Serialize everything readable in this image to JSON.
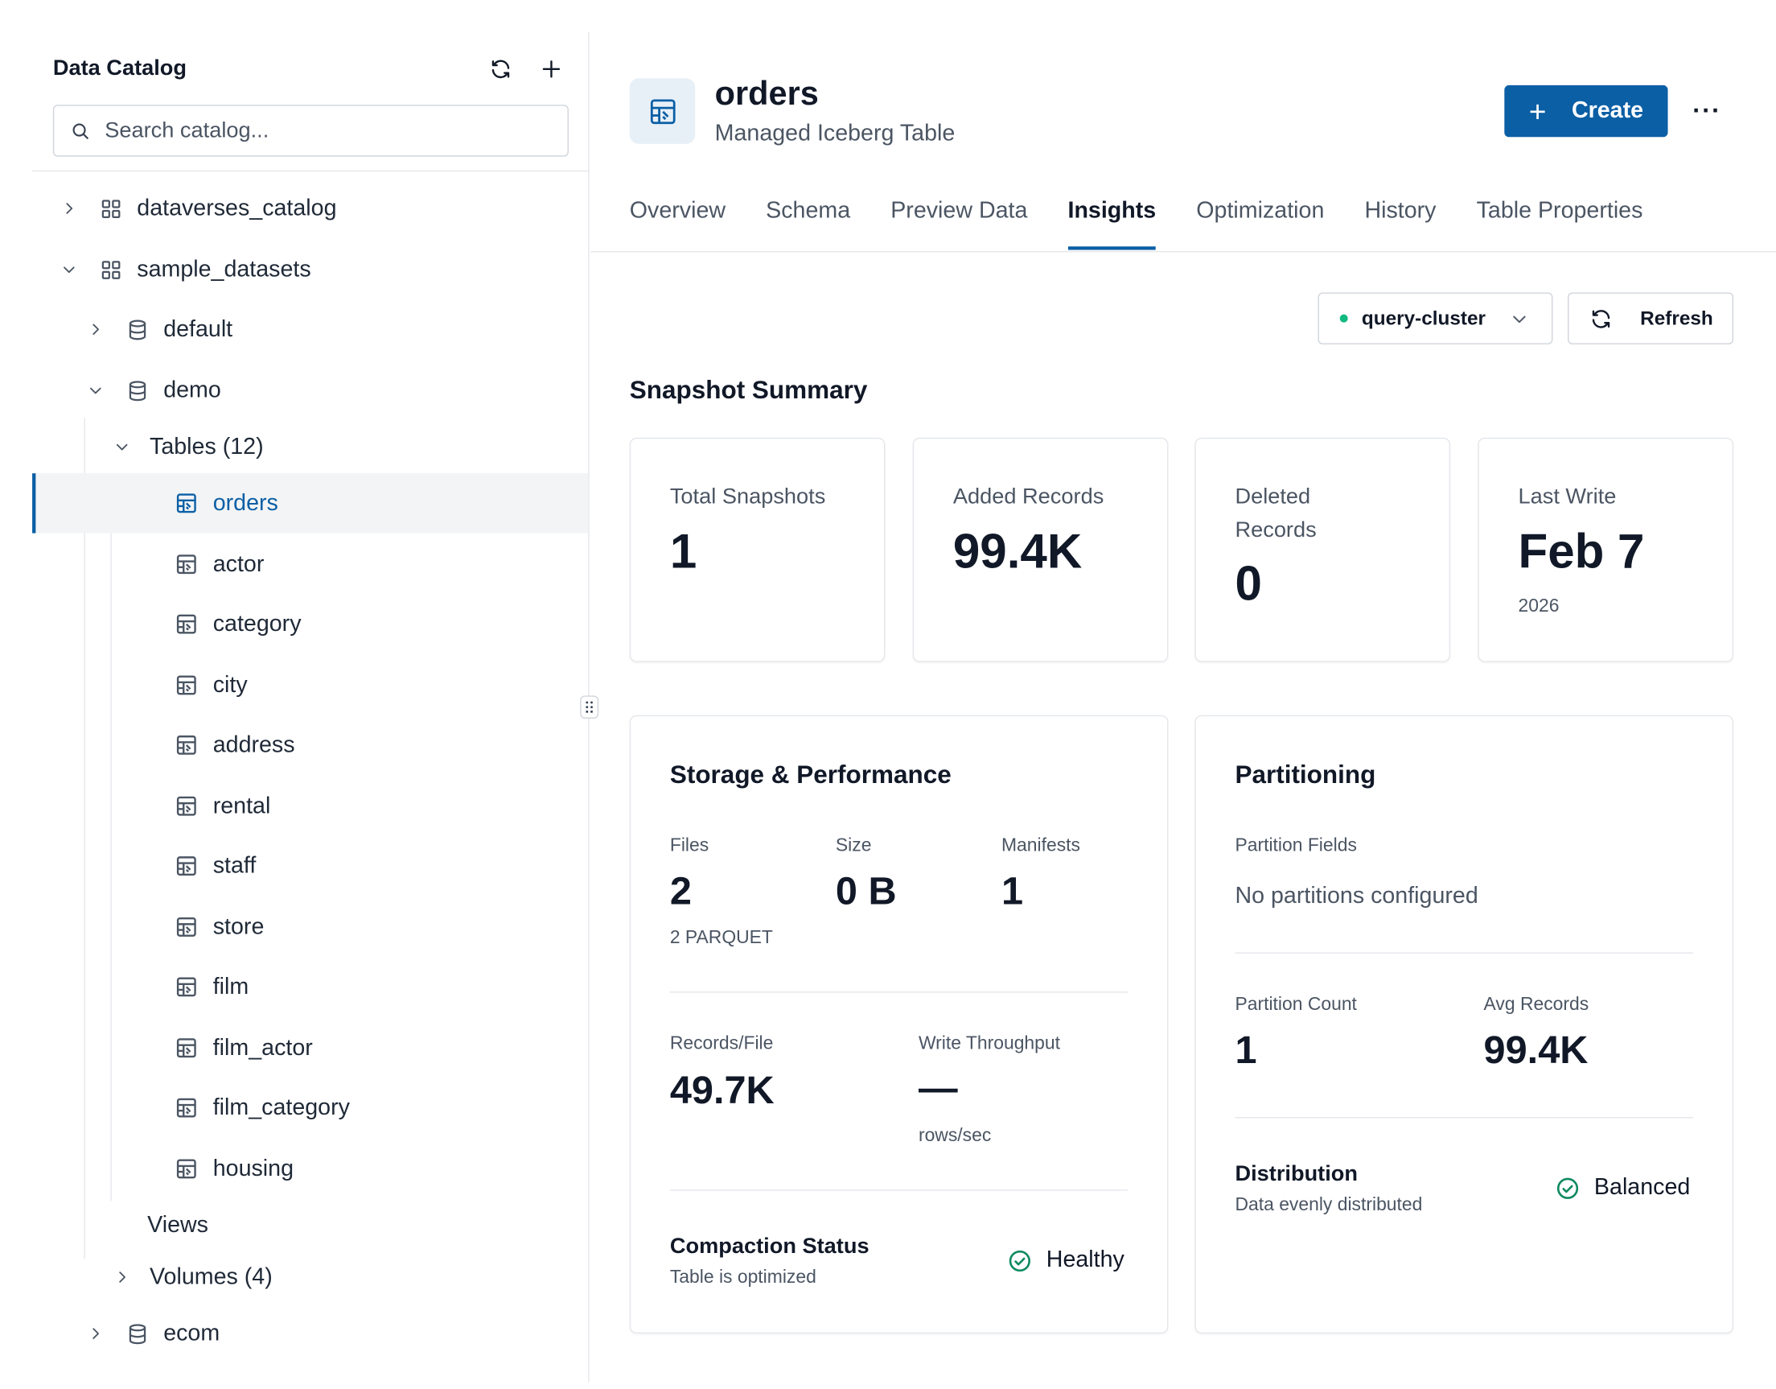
{
  "sidebar": {
    "title": "Data Catalog",
    "search_placeholder": "Search catalog...",
    "tree": {
      "dataverses_catalog": "dataverses_catalog",
      "sample_datasets": "sample_datasets",
      "default": "default",
      "demo": "demo",
      "tables_group": "Tables (12)",
      "tables": [
        "orders",
        "actor",
        "category",
        "city",
        "address",
        "rental",
        "staff",
        "store",
        "film",
        "film_actor",
        "film_category",
        "housing"
      ],
      "views": "Views",
      "volumes": "Volumes (4)",
      "ecom": "ecom"
    },
    "selected_table": "orders"
  },
  "header": {
    "title": "orders",
    "subtitle": "Managed Iceberg Table",
    "create_label": "Create",
    "more_label": "···"
  },
  "tabs": [
    {
      "label": "Overview",
      "active": false
    },
    {
      "label": "Schema",
      "active": false
    },
    {
      "label": "Preview Data",
      "active": false
    },
    {
      "label": "Insights",
      "active": true
    },
    {
      "label": "Optimization",
      "active": false
    },
    {
      "label": "History",
      "active": false
    },
    {
      "label": "Table Properties",
      "active": false
    }
  ],
  "toolbar": {
    "cluster": "query-cluster",
    "refresh_label": "Refresh"
  },
  "snapshot_summary": {
    "title": "Snapshot Summary",
    "total_snapshots": {
      "label": "Total Snapshots",
      "value": "1"
    },
    "added_records": {
      "label": "Added Records",
      "value": "99.4K"
    },
    "deleted_records": {
      "label": "Deleted Records",
      "value": "0"
    },
    "last_write": {
      "label": "Last Write",
      "value": "Feb 7",
      "year": "2026"
    }
  },
  "storage": {
    "title": "Storage & Performance",
    "files": {
      "label": "Files",
      "value": "2",
      "sub": "2 PARQUET"
    },
    "size": {
      "label": "Size",
      "value": "0 B"
    },
    "manifests": {
      "label": "Manifests",
      "value": "1"
    },
    "records_per_file": {
      "label": "Records/File",
      "value": "49.7K"
    },
    "write_throughput": {
      "label": "Write Throughput",
      "value": "—",
      "unit": "rows/sec"
    },
    "compaction": {
      "title": "Compaction Status",
      "desc": "Table is optimized",
      "status": "Healthy"
    }
  },
  "partitioning": {
    "title": "Partitioning",
    "fields_label": "Partition Fields",
    "fields_value": "No partitions configured",
    "partition_count": {
      "label": "Partition Count",
      "value": "1"
    },
    "avg_records": {
      "label": "Avg Records",
      "value": "99.4K"
    },
    "distribution": {
      "title": "Distribution",
      "desc": "Data evenly distributed",
      "status": "Balanced"
    }
  },
  "colors": {
    "accent": "#0b5fa5",
    "success": "#10b981",
    "healthy_icon": "#0f8a5f"
  }
}
